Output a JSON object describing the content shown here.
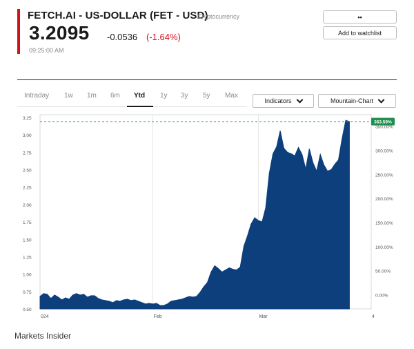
{
  "header": {
    "title": "FETCH.AI - US-DOLLAR (FET - USD)",
    "asset_class": "Cryptocurrency",
    "price": "3.2095",
    "change_abs": "-0.0536",
    "change_pct": "(-1.64%)",
    "timestamp": "09:25:00 AM",
    "more_button": "••",
    "watchlist_button": "Add to watchlist",
    "accent_color": "#d4101b"
  },
  "tabs": [
    {
      "label": "Intraday",
      "active": false
    },
    {
      "label": "1w",
      "active": false
    },
    {
      "label": "1m",
      "active": false
    },
    {
      "label": "6m",
      "active": false
    },
    {
      "label": "Ytd",
      "active": true
    },
    {
      "label": "1y",
      "active": false
    },
    {
      "label": "3y",
      "active": false
    },
    {
      "label": "5y",
      "active": false
    },
    {
      "label": "Max",
      "active": false
    }
  ],
  "controls": {
    "indicators_label": "Indicators",
    "chart_type_label": "Mountain-Chart"
  },
  "chart_data": {
    "type": "area",
    "fill_color": "#0d3f7c",
    "badge_color": "#1e8f4e",
    "current_badge": "363.59%",
    "ylim": [
      0.5,
      3.25
    ],
    "left_ticks": [
      "3.25",
      "3.00",
      "2.75",
      "2.50",
      "2.25",
      "2.00",
      "1.75",
      "1.50",
      "1.25",
      "1.00",
      "0.75",
      "0.50"
    ],
    "left_tick_values": [
      3.25,
      3.0,
      2.75,
      2.5,
      2.25,
      2.0,
      1.75,
      1.5,
      1.25,
      1.0,
      0.75,
      0.5
    ],
    "right_ticks": [
      "350.00%",
      "300.00%",
      "250.00%",
      "200.00%",
      "150.00%",
      "100.00%",
      "50.00%",
      "0.00%"
    ],
    "right_tick_values": [
      3.125,
      2.779,
      2.433,
      2.087,
      1.741,
      1.395,
      1.049,
      0.703
    ],
    "x_ticks": [
      {
        "label": "024",
        "t": 0
      },
      {
        "label": "Feb",
        "t": 31
      },
      {
        "label": "Mar",
        "t": 60
      },
      {
        "label": "4",
        "t": 91
      }
    ],
    "x_range": [
      0,
      91
    ],
    "points": [
      [
        0,
        0.68
      ],
      [
        1,
        0.72
      ],
      [
        2,
        0.71
      ],
      [
        3,
        0.65
      ],
      [
        4,
        0.7
      ],
      [
        5,
        0.67
      ],
      [
        6,
        0.63
      ],
      [
        7,
        0.66
      ],
      [
        8,
        0.64
      ],
      [
        9,
        0.7
      ],
      [
        10,
        0.72
      ],
      [
        11,
        0.7
      ],
      [
        12,
        0.71
      ],
      [
        13,
        0.67
      ],
      [
        14,
        0.69
      ],
      [
        15,
        0.69
      ],
      [
        16,
        0.65
      ],
      [
        17,
        0.63
      ],
      [
        18,
        0.62
      ],
      [
        19,
        0.61
      ],
      [
        20,
        0.59
      ],
      [
        21,
        0.62
      ],
      [
        22,
        0.61
      ],
      [
        23,
        0.63
      ],
      [
        24,
        0.64
      ],
      [
        25,
        0.62
      ],
      [
        26,
        0.63
      ],
      [
        27,
        0.61
      ],
      [
        28,
        0.59
      ],
      [
        29,
        0.57
      ],
      [
        30,
        0.58
      ],
      [
        31,
        0.57
      ],
      [
        32,
        0.58
      ],
      [
        33,
        0.55
      ],
      [
        34,
        0.55
      ],
      [
        35,
        0.57
      ],
      [
        36,
        0.61
      ],
      [
        37,
        0.62
      ],
      [
        38,
        0.63
      ],
      [
        39,
        0.64
      ],
      [
        40,
        0.66
      ],
      [
        41,
        0.68
      ],
      [
        42,
        0.67
      ],
      [
        43,
        0.68
      ],
      [
        44,
        0.74
      ],
      [
        45,
        0.82
      ],
      [
        46,
        0.88
      ],
      [
        47,
        1.03
      ],
      [
        48,
        1.12
      ],
      [
        49,
        1.08
      ],
      [
        50,
        1.03
      ],
      [
        51,
        1.06
      ],
      [
        52,
        1.09
      ],
      [
        53,
        1.07
      ],
      [
        54,
        1.06
      ],
      [
        55,
        1.1
      ],
      [
        56,
        1.4
      ],
      [
        57,
        1.55
      ],
      [
        58,
        1.72
      ],
      [
        59,
        1.81
      ],
      [
        60,
        1.77
      ],
      [
        61,
        1.75
      ],
      [
        62,
        1.95
      ],
      [
        63,
        2.45
      ],
      [
        64,
        2.73
      ],
      [
        65,
        2.83
      ],
      [
        66,
        3.06
      ],
      [
        67,
        2.81
      ],
      [
        68,
        2.75
      ],
      [
        69,
        2.73
      ],
      [
        70,
        2.7
      ],
      [
        71,
        2.82
      ],
      [
        72,
        2.72
      ],
      [
        73,
        2.51
      ],
      [
        74,
        2.8
      ],
      [
        75,
        2.6
      ],
      [
        76,
        2.48
      ],
      [
        77,
        2.72
      ],
      [
        78,
        2.57
      ],
      [
        79,
        2.48
      ],
      [
        80,
        2.5
      ],
      [
        81,
        2.58
      ],
      [
        82,
        2.64
      ],
      [
        83,
        2.95
      ],
      [
        84,
        3.21
      ],
      [
        85,
        3.19
      ]
    ]
  },
  "footer": {
    "source": "Markets Insider"
  }
}
